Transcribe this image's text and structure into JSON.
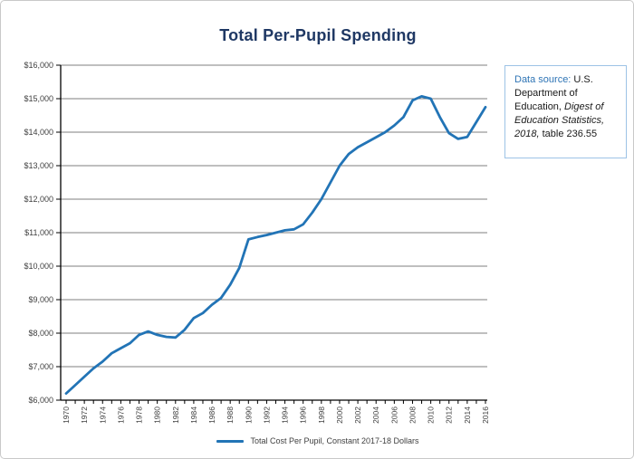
{
  "colors": {
    "line": "#2274B6",
    "grid": "#7F7F7F",
    "axis": "#000000",
    "tick_text": "#3F3F3F",
    "title": "#1F3864",
    "source_label": "#2E74B5",
    "box_border": "#9DC3E6"
  },
  "source_box": {
    "label": "Data source:",
    "text_before_italic": " U.S. Department of Education, ",
    "italic": "Digest of Education Statistics, 2018,",
    "text_after_italic": "  table 236.55"
  },
  "chart_data": {
    "type": "line",
    "title": "Total Per-Pupil Spending",
    "xlabel": "",
    "ylabel": "",
    "ylim": [
      6000,
      16000
    ],
    "y_tick_step": 1000,
    "grid": "horizontal",
    "legend_position": "bottom",
    "y_tick_labels": [
      "$6,000",
      "$7,000",
      "$8,000",
      "$9,000",
      "$10,000",
      "$11,000",
      "$12,000",
      "$13,000",
      "$14,000",
      "$15,000",
      "$16,000"
    ],
    "x_tick_labels": [
      "1970",
      "1972",
      "1974",
      "1976",
      "1978",
      "1980",
      "1982",
      "1984",
      "1986",
      "1988",
      "1990",
      "1992",
      "1994",
      "1996",
      "1998",
      "2000",
      "2002",
      "2004",
      "2006",
      "2008",
      "2010",
      "2012",
      "2014",
      "2016"
    ],
    "x": [
      1970,
      1971,
      1972,
      1973,
      1974,
      1975,
      1976,
      1977,
      1978,
      1979,
      1980,
      1981,
      1982,
      1983,
      1984,
      1985,
      1986,
      1987,
      1988,
      1989,
      1990,
      1991,
      1992,
      1993,
      1994,
      1995,
      1996,
      1997,
      1998,
      1999,
      2000,
      2001,
      2002,
      2003,
      2004,
      2005,
      2006,
      2007,
      2008,
      2009,
      2010,
      2011,
      2012,
      2013,
      2014,
      2015,
      2016
    ],
    "series": [
      {
        "name": "Total Cost Per Pupil, Constant 2017-18 Dollars",
        "values": [
          6200,
          6450,
          6700,
          6950,
          7150,
          7400,
          7550,
          7700,
          7950,
          8050,
          7950,
          7890,
          7870,
          8100,
          8450,
          8600,
          8850,
          9050,
          9450,
          9950,
          10800,
          10870,
          10930,
          11000,
          11070,
          11100,
          11250,
          11600,
          12000,
          12500,
          13000,
          13350,
          13550,
          13700,
          13850,
          14000,
          14200,
          14450,
          14950,
          15070,
          15000,
          14450,
          13970,
          13800,
          13860,
          14300,
          14750
        ]
      }
    ]
  }
}
